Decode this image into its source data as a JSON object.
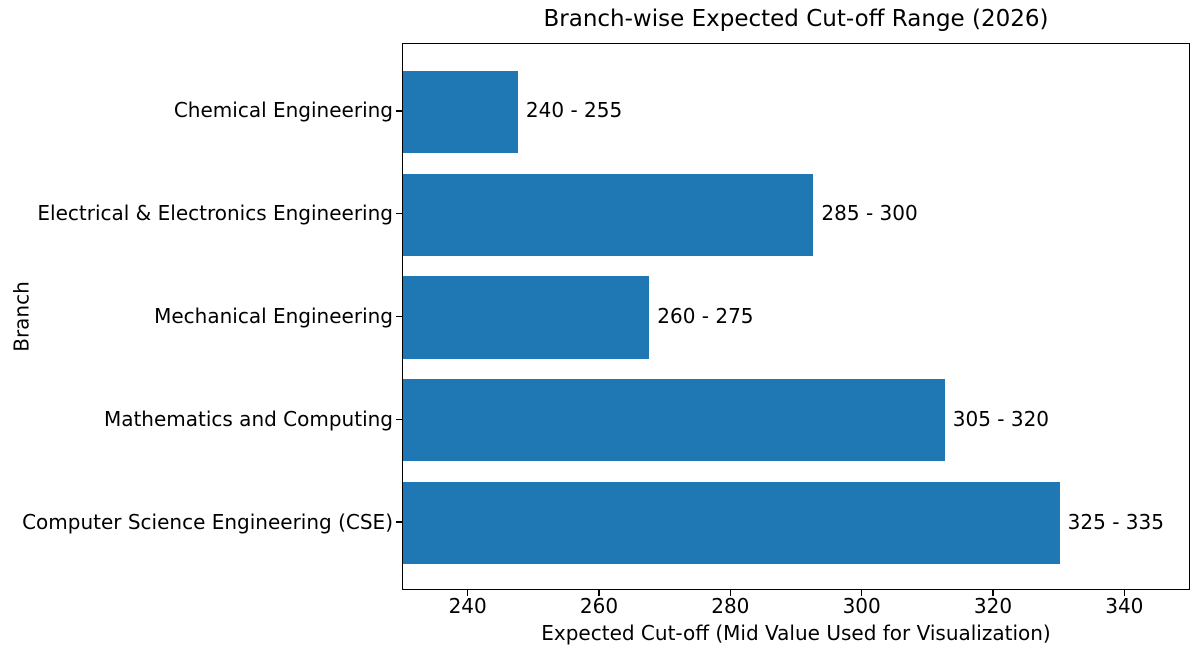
{
  "chart_data": {
    "type": "bar",
    "orientation": "horizontal",
    "title": "Branch-wise Expected Cut-off Range (2026)",
    "xlabel": "Expected Cut-off (Mid Value Used for Visualization)",
    "ylabel": "Branch",
    "categories": [
      "Chemical Engineering",
      "Electrical & Electronics Engineering",
      "Mechanical Engineering",
      "Mathematics and Computing",
      "Computer Science Engineering (CSE)"
    ],
    "values": [
      247.5,
      292.5,
      267.5,
      312.5,
      330
    ],
    "ranges": [
      [
        240,
        255
      ],
      [
        285,
        300
      ],
      [
        260,
        275
      ],
      [
        305,
        320
      ],
      [
        325,
        335
      ]
    ],
    "bar_labels": [
      "240 - 255",
      "285 - 300",
      "260 - 275",
      "305 - 320",
      "325 - 335"
    ],
    "xlim": [
      230,
      350
    ],
    "xticks": [
      240,
      260,
      280,
      300,
      320,
      340
    ],
    "bar_color": "#1f77b4",
    "text_color": "#000000",
    "background_color": "#ffffff",
    "grid": false,
    "legend_position": "none"
  }
}
